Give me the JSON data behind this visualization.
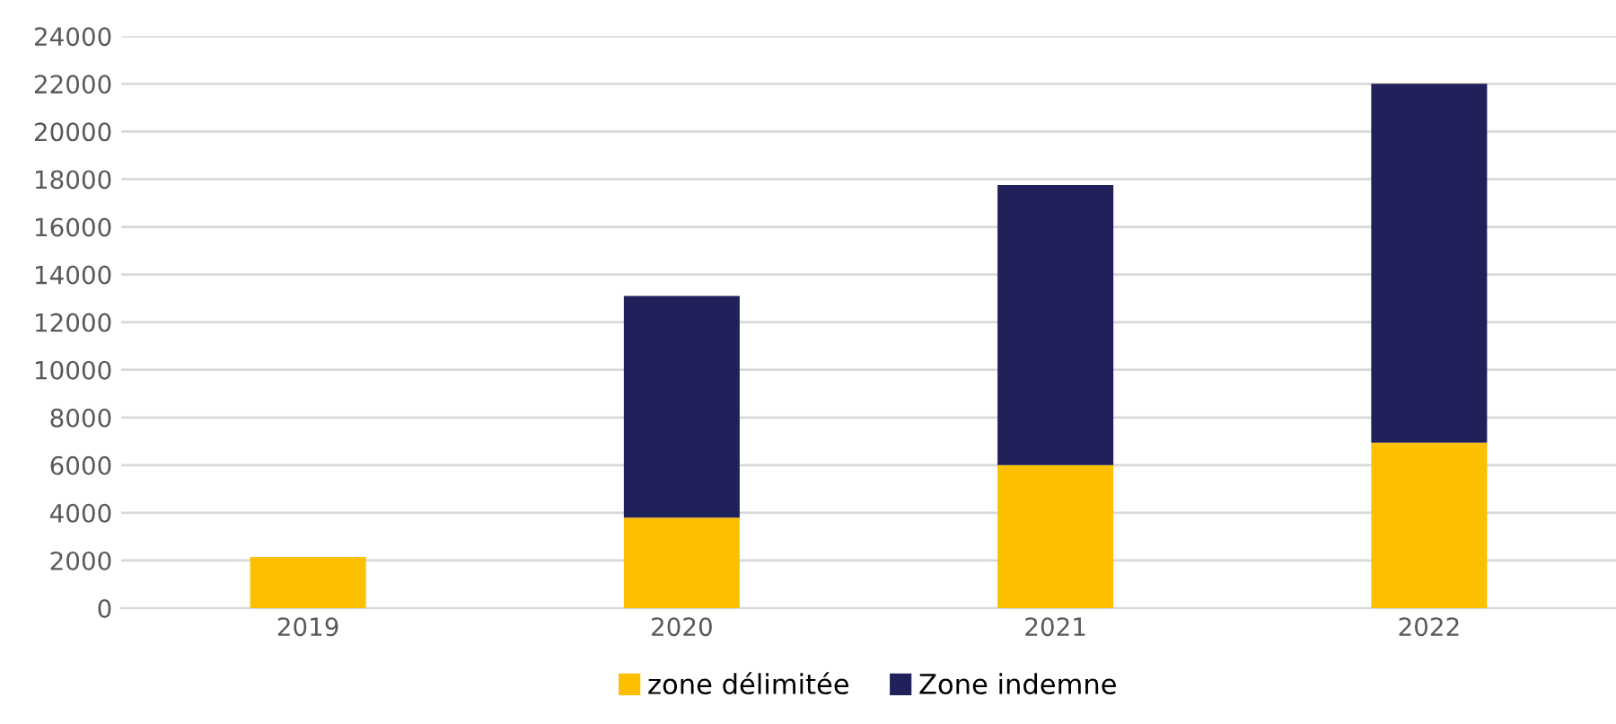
{
  "chart_data": {
    "type": "bar",
    "stacked": true,
    "categories": [
      "2019",
      "2020",
      "2021",
      "2022"
    ],
    "series": [
      {
        "name": "zone délimitée",
        "color": "#fcc000",
        "values": [
          2150,
          3800,
          6000,
          6950
        ]
      },
      {
        "name": "Zone indemne",
        "color": "#20205a",
        "values": [
          0,
          9300,
          11750,
          15050
        ]
      }
    ],
    "ylim": [
      0,
      24000
    ],
    "yticks": [
      0,
      2000,
      4000,
      6000,
      8000,
      10000,
      12000,
      14000,
      16000,
      18000,
      20000,
      22000,
      24000
    ],
    "grid": "y",
    "legend": "bottom"
  }
}
